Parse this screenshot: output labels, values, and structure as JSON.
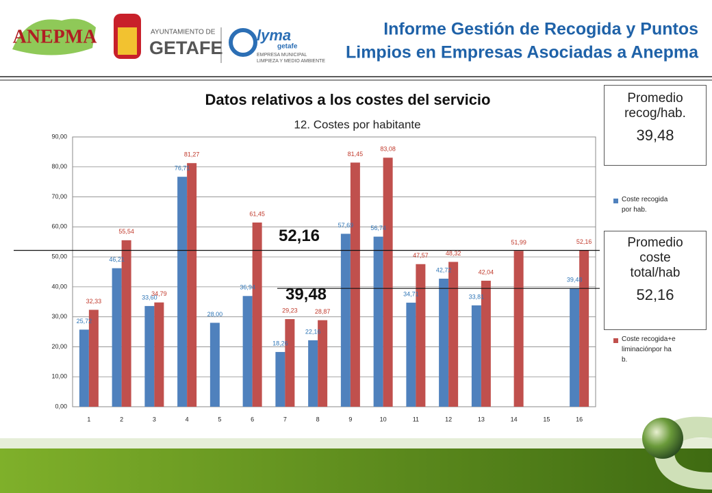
{
  "header": {
    "title_line1": "Informe Gestión de Recogida y Puntos",
    "title_line2": "Limpios en Empresas Asociadas a Anepma",
    "logos": {
      "anepma": "ANEPMA",
      "ayto_small": "AYUNTAMIENTO DE",
      "ayto_big": "GETAFE",
      "lyma": "lyma",
      "lyma_sub": "getafe",
      "lyma_line1": "EMPRESA MUNICIPAL",
      "lyma_line2": "LIMPIEZA Y MEDIO AMBIENTE"
    }
  },
  "side_boxes": [
    {
      "title": "Promedio recog/hab.",
      "value": "39,48"
    },
    {
      "title": "Promedio coste total/hab",
      "value": "52,16"
    }
  ],
  "chart_data": {
    "type": "bar",
    "title": "Datos relativos a los costes del servicio",
    "subtitle": "12. Costes por habitante",
    "categories": [
      "1",
      "2",
      "3",
      "4",
      "5",
      "6",
      "7",
      "8",
      "9",
      "10",
      "11",
      "12",
      "13",
      "14",
      "15",
      "16"
    ],
    "series": [
      {
        "name": "Coste recogida por hab.",
        "color": "#4f81bd",
        "label_color": "#2e75b6",
        "values": [
          25.72,
          46.21,
          33.6,
          76.71,
          28.0,
          36.94,
          18.26,
          22.16,
          57.69,
          56.74,
          34.71,
          42.72,
          33.81,
          null,
          null,
          39.48
        ],
        "value_labels": [
          "25,72",
          "46,21",
          "33,60",
          "76,71",
          "28,00",
          "36,94",
          "18,26",
          "22,16",
          "57,69",
          "56,74",
          "34,71",
          "42,72",
          "33,81",
          null,
          null,
          "39,48"
        ]
      },
      {
        "name": "Coste recogida+eliminaciónpor hab.",
        "color": "#c0504d",
        "label_color": "#c0392b",
        "values": [
          32.33,
          55.54,
          34.79,
          81.27,
          null,
          61.45,
          29.23,
          28.87,
          81.45,
          83.08,
          47.57,
          48.32,
          42.04,
          51.99,
          null,
          52.16
        ],
        "value_labels": [
          "32,33",
          "55,54",
          "34,79",
          "81,27",
          null,
          "61,45",
          "29,23",
          "28,87",
          "81,45",
          "83,08",
          "47,57",
          "48,32",
          "42,04",
          "51,99",
          null,
          "52,16"
        ]
      }
    ],
    "ylim": [
      0,
      90
    ],
    "yticks": [
      {
        "value": 0,
        "label": "0,00"
      },
      {
        "value": 10,
        "label": "10,00"
      },
      {
        "value": 20,
        "label": "20,00"
      },
      {
        "value": 30,
        "label": "30,00"
      },
      {
        "value": 40,
        "label": "40,00"
      },
      {
        "value": 50,
        "label": "50,00"
      },
      {
        "value": 60,
        "label": "60,00"
      },
      {
        "value": 70,
        "label": "70,00"
      },
      {
        "value": 80,
        "label": "80,00"
      },
      {
        "value": 90,
        "label": "90,00"
      }
    ],
    "grid": true,
    "reference_lines": [
      {
        "value": 52.16,
        "label": "52,16"
      },
      {
        "value": 39.48,
        "label": "39,48"
      }
    ]
  }
}
